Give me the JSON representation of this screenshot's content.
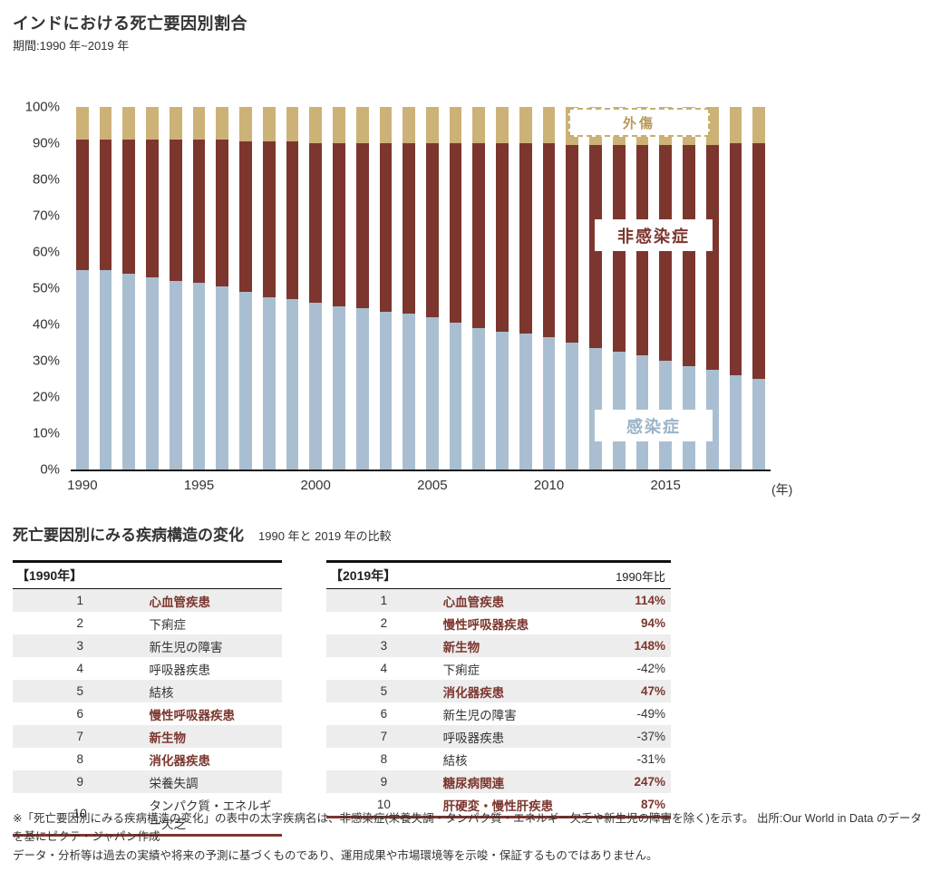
{
  "page": {
    "title": "インドにおける死亡要因別割合",
    "subtitle": "期間:1990 年~2019 年"
  },
  "chart_data": {
    "type": "bar",
    "stacked": true,
    "percent_stacked": true,
    "title": "インドにおける死亡要因別割合",
    "ylim": [
      0,
      100
    ],
    "grid": false,
    "y_ticks": [
      "100%",
      "90%",
      "80%",
      "70%",
      "60%",
      "50%",
      "40%",
      "30%",
      "20%",
      "10%",
      "0%"
    ],
    "x": [
      1990,
      1991,
      1992,
      1993,
      1994,
      1995,
      1996,
      1997,
      1998,
      1999,
      2000,
      2001,
      2002,
      2003,
      2004,
      2005,
      2006,
      2007,
      2008,
      2009,
      2010,
      2011,
      2012,
      2013,
      2014,
      2015,
      2016,
      2017,
      2018,
      2019
    ],
    "x_ticks": [
      "1990",
      "1995",
      "2000",
      "2005",
      "2010",
      "2015"
    ],
    "x_unit": "(年)",
    "series": [
      {
        "key": "infectious",
        "name": "感染症",
        "color": "#a9bfd1",
        "values": [
          55,
          55,
          54,
          53,
          52,
          51.5,
          50.5,
          49,
          47.5,
          47,
          46,
          45,
          44.5,
          43.5,
          43,
          42,
          40.5,
          39,
          38,
          37.5,
          36.5,
          35,
          33.5,
          32.5,
          31.5,
          30,
          28.5,
          27.5,
          26,
          25
        ]
      },
      {
        "key": "ncd",
        "name": "非感染症",
        "color": "#7c362e",
        "values": [
          36,
          36,
          37,
          38,
          39,
          39.5,
          40.5,
          41.5,
          43,
          43.5,
          44,
          45,
          45.5,
          46.5,
          47,
          48,
          49.5,
          51,
          52,
          52.5,
          53.5,
          54.5,
          56,
          57,
          58,
          59.5,
          61,
          62,
          64,
          65
        ]
      },
      {
        "key": "injury",
        "name": "外傷",
        "color": "#cdb277",
        "values": [
          9,
          9,
          9,
          9,
          9,
          9,
          9,
          9.5,
          9.5,
          9.5,
          10,
          10,
          10,
          10,
          10,
          10,
          10,
          10,
          10,
          10,
          10,
          10.5,
          10.5,
          10.5,
          10.5,
          10.5,
          10.5,
          10.5,
          10,
          10
        ]
      }
    ],
    "labels": {
      "injury": "外傷",
      "ncd": "非感染症",
      "infectious": "感染症"
    }
  },
  "section2": {
    "title": "死亡要因別にみる疾病構造の変化",
    "subtitle": "1990 年と 2019 年の比較",
    "table_1990": {
      "header": "【1990年】",
      "rows": [
        {
          "rank": "1",
          "name": "心血管疾患",
          "ncd": true
        },
        {
          "rank": "2",
          "name": "下痢症",
          "ncd": false
        },
        {
          "rank": "3",
          "name": "新生児の障害",
          "ncd": false
        },
        {
          "rank": "4",
          "name": "呼吸器疾患",
          "ncd": false
        },
        {
          "rank": "5",
          "name": "結核",
          "ncd": false
        },
        {
          "rank": "6",
          "name": "慢性呼吸器疾患",
          "ncd": true
        },
        {
          "rank": "7",
          "name": "新生物",
          "ncd": true
        },
        {
          "rank": "8",
          "name": "消化器疾患",
          "ncd": true
        },
        {
          "rank": "9",
          "name": "栄養失調",
          "ncd": false
        },
        {
          "rank": "10",
          "name": "タンパク質・エネルギー欠乏",
          "ncd": false
        }
      ]
    },
    "table_2019": {
      "header": "【2019年】",
      "change_header": "1990年比",
      "rows": [
        {
          "rank": "1",
          "name": "心血管疾患",
          "change": "114%",
          "ncd": true
        },
        {
          "rank": "2",
          "name": "慢性呼吸器疾患",
          "change": "94%",
          "ncd": true
        },
        {
          "rank": "3",
          "name": "新生物",
          "change": "148%",
          "ncd": true
        },
        {
          "rank": "4",
          "name": "下痢症",
          "change": "-42%",
          "ncd": false
        },
        {
          "rank": "5",
          "name": "消化器疾患",
          "change": "47%",
          "ncd": true
        },
        {
          "rank": "6",
          "name": "新生児の障害",
          "change": "-49%",
          "ncd": false
        },
        {
          "rank": "7",
          "name": "呼吸器疾患",
          "change": "-37%",
          "ncd": false
        },
        {
          "rank": "8",
          "name": "結核",
          "change": "-31%",
          "ncd": false
        },
        {
          "rank": "9",
          "name": "糖尿病関連",
          "change": "247%",
          "ncd": true
        },
        {
          "rank": "10",
          "name": "肝硬変・慢性肝疾患",
          "change": "87%",
          "ncd": true
        }
      ]
    }
  },
  "footer": {
    "note1": "※「死亡要因別にみる疾病構造の変化」の表中の太字疾病名は、非感染症(栄養失調・タンパク質・エネルギー欠乏や新生児の障害を除く)を示す。 出所:Our World in Data のデータを基にピクテ・ジャパン作成",
    "note2": "データ・分析等は過去の実績や将来の予測に基づくものであり、運用成果や市場環境等を示唆・保証するものではありません。"
  }
}
